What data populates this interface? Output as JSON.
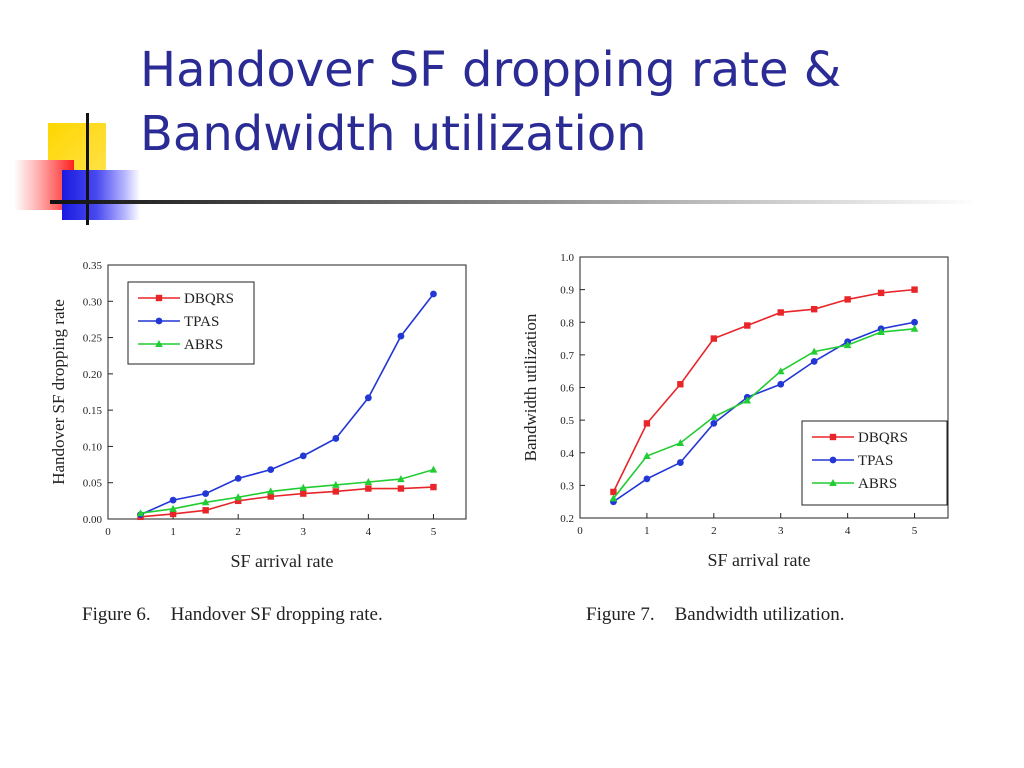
{
  "slide": {
    "title_line1": "Handover SF dropping rate &",
    "title_line2": "Bandwidth utilization",
    "colors": {
      "title": "#2b2b96"
    }
  },
  "captions": [
    {
      "number": "Figure 6.",
      "text": "Handover SF dropping rate."
    },
    {
      "number": "Figure 7.",
      "text": "Bandwidth utilization."
    }
  ],
  "chart_data": [
    {
      "type": "line",
      "title": "",
      "xlabel": "SF arrival rate",
      "ylabel": "Handover SF dropping rate",
      "xlim": [
        0,
        5.5
      ],
      "ylim": [
        0,
        0.35
      ],
      "xticks": [
        0,
        1,
        2,
        3,
        4,
        5
      ],
      "yticks": [
        0.0,
        0.05,
        0.1,
        0.15,
        0.2,
        0.25,
        0.3,
        0.35
      ],
      "ytick_labels": [
        "0.00",
        "0.05",
        "0.10",
        "0.15",
        "0.20",
        "0.25",
        "0.30",
        "0.35"
      ],
      "xtick_labels": [
        "0",
        "1",
        "2",
        "3",
        "4",
        "5"
      ],
      "grid": false,
      "legend_position": "top-left",
      "x": [
        0.5,
        1,
        1.5,
        2,
        2.5,
        3,
        3.5,
        4,
        4.5,
        5
      ],
      "series": [
        {
          "name": "DBQRS",
          "color": "#e8262a",
          "marker": "square",
          "values": [
            0.003,
            0.007,
            0.012,
            0.025,
            0.031,
            0.035,
            0.038,
            0.042,
            0.042,
            0.044
          ]
        },
        {
          "name": "TPAS",
          "color": "#2336d6",
          "marker": "circle",
          "values": [
            0.006,
            0.026,
            0.035,
            0.056,
            0.068,
            0.087,
            0.111,
            0.167,
            0.252,
            0.31
          ]
        },
        {
          "name": "ABRS",
          "color": "#22cc33",
          "marker": "triangle",
          "values": [
            0.008,
            0.014,
            0.023,
            0.03,
            0.038,
            0.043,
            0.047,
            0.051,
            0.055,
            0.068
          ]
        }
      ]
    },
    {
      "type": "line",
      "title": "",
      "xlabel": "SF arrival rate",
      "ylabel": "Bandwidth utilization",
      "xlim": [
        0,
        5.5
      ],
      "ylim": [
        0.2,
        1.0
      ],
      "xticks": [
        0,
        1,
        2,
        3,
        4,
        5
      ],
      "yticks": [
        0.2,
        0.3,
        0.4,
        0.5,
        0.6,
        0.7,
        0.8,
        0.9,
        1.0
      ],
      "ytick_labels": [
        "0.2",
        "0.3",
        "0.4",
        "0.5",
        "0.6",
        "0.7",
        "0.8",
        "0.9",
        "1.0"
      ],
      "xtick_labels": [
        "0",
        "1",
        "2",
        "3",
        "4",
        "5"
      ],
      "grid": false,
      "legend_position": "bottom-right",
      "x": [
        0.5,
        1,
        1.5,
        2,
        2.5,
        3,
        3.5,
        4,
        4.5,
        5
      ],
      "series": [
        {
          "name": "DBQRS",
          "color": "#e8262a",
          "marker": "square",
          "values": [
            0.28,
            0.49,
            0.61,
            0.75,
            0.79,
            0.83,
            0.84,
            0.87,
            0.89,
            0.9
          ]
        },
        {
          "name": "TPAS",
          "color": "#2336d6",
          "marker": "circle",
          "values": [
            0.25,
            0.32,
            0.37,
            0.49,
            0.57,
            0.61,
            0.68,
            0.74,
            0.78,
            0.8
          ]
        },
        {
          "name": "ABRS",
          "color": "#22cc33",
          "marker": "triangle",
          "values": [
            0.26,
            0.39,
            0.43,
            0.51,
            0.56,
            0.65,
            0.71,
            0.73,
            0.77,
            0.78
          ]
        }
      ]
    }
  ]
}
